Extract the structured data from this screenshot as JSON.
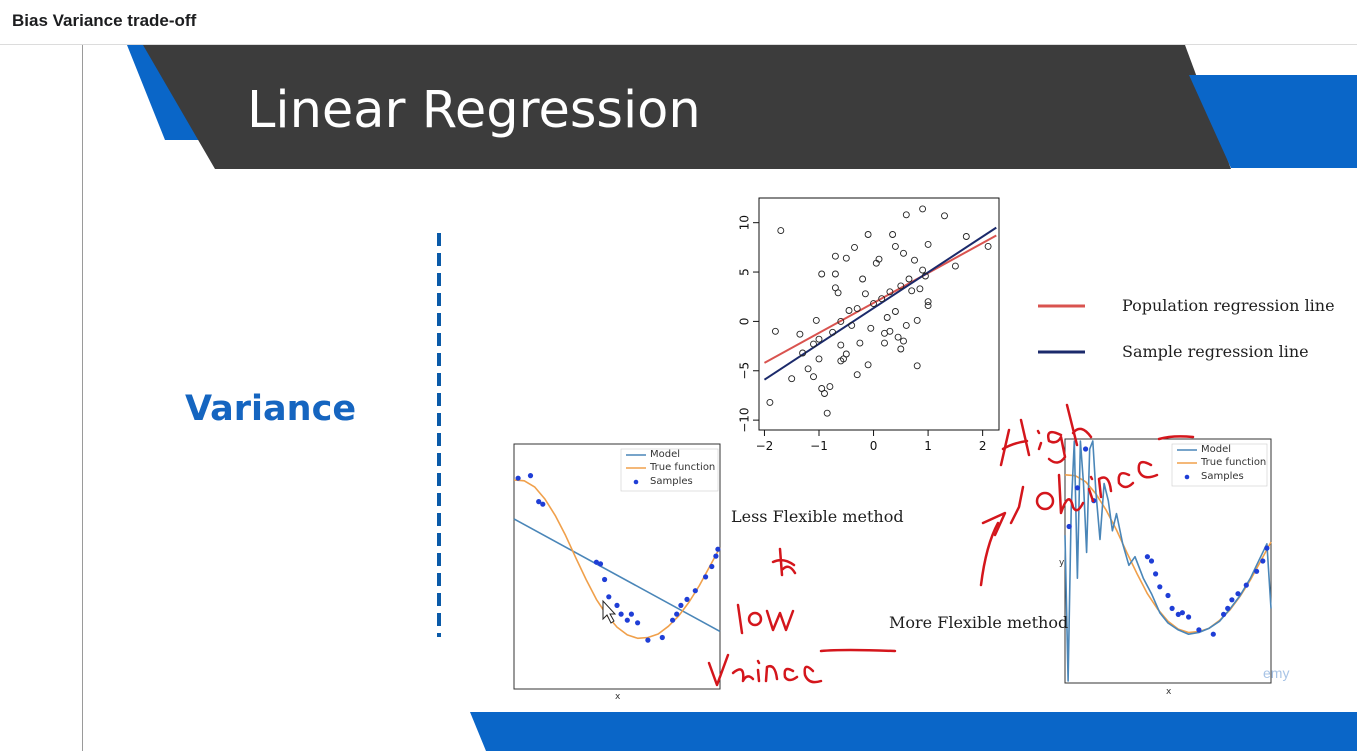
{
  "window": {
    "title": "Bias Variance trade-off"
  },
  "slide": {
    "title": "Linear Regression",
    "section_label": "Variance",
    "less_flexible_label": "Less Flexible method",
    "more_flexible_label": "More Flexible method",
    "watermark": "emy",
    "colors": {
      "header": "#3c3c3c",
      "accent": "#0a66c8",
      "variance_text": "#1565c0",
      "ink": "#d4161c"
    }
  },
  "handwriting": {
    "low_note": [
      "to",
      "low",
      "Variance"
    ],
    "high_note": [
      "High",
      "Variance"
    ]
  },
  "chart_data": [
    {
      "type": "scatter",
      "title": "",
      "xlabel": "",
      "ylabel": "",
      "xlim": [
        -2.1,
        2.3
      ],
      "ylim": [
        -11,
        12.5
      ],
      "xticks": [
        "−2",
        "−1",
        "0",
        "1",
        "2"
      ],
      "yticks": [
        "−10",
        "−5",
        "0",
        "5",
        "10"
      ],
      "legend": [
        "Population regression line",
        "Sample regression line"
      ],
      "lines": [
        {
          "name": "Population regression line",
          "color": "#d9534f",
          "x": [
            -2.0,
            2.25
          ],
          "y": [
            -4.2,
            8.7
          ]
        },
        {
          "name": "Sample regression line",
          "color": "#1b2a6b",
          "x": [
            -2.0,
            2.25
          ],
          "y": [
            -5.9,
            9.5
          ]
        }
      ],
      "points": [
        [
          -1.7,
          9.2
        ],
        [
          -1.8,
          -1.0
        ],
        [
          -1.9,
          -8.2
        ],
        [
          -1.5,
          -5.8
        ],
        [
          -1.3,
          -3.2
        ],
        [
          -1.2,
          -4.8
        ],
        [
          -1.1,
          -5.6
        ],
        [
          -1.05,
          0.1
        ],
        [
          -1.0,
          -1.8
        ],
        [
          -1.0,
          -3.8
        ],
        [
          -0.95,
          -6.8
        ],
        [
          -0.9,
          -7.3
        ],
        [
          -0.85,
          -9.3
        ],
        [
          -0.8,
          -6.6
        ],
        [
          -1.1,
          -2.3
        ],
        [
          -0.95,
          4.8
        ],
        [
          -0.7,
          6.6
        ],
        [
          -0.7,
          4.8
        ],
        [
          -0.7,
          3.4
        ],
        [
          -0.65,
          2.9
        ],
        [
          -0.6,
          0.0
        ],
        [
          -0.6,
          -2.4
        ],
        [
          -0.6,
          -4.0
        ],
        [
          -0.55,
          -3.8
        ],
        [
          -0.5,
          -3.3
        ],
        [
          -0.5,
          6.4
        ],
        [
          -0.45,
          1.1
        ],
        [
          -0.4,
          -0.4
        ],
        [
          -0.35,
          7.5
        ],
        [
          -0.3,
          1.3
        ],
        [
          -0.3,
          -5.4
        ],
        [
          -0.25,
          -2.2
        ],
        [
          -0.2,
          4.3
        ],
        [
          -0.15,
          2.8
        ],
        [
          -0.1,
          8.8
        ],
        [
          -0.1,
          -4.4
        ],
        [
          -0.05,
          -0.7
        ],
        [
          0.0,
          1.8
        ],
        [
          0.05,
          5.9
        ],
        [
          0.1,
          6.3
        ],
        [
          0.15,
          2.3
        ],
        [
          0.2,
          -1.2
        ],
        [
          0.2,
          -2.2
        ],
        [
          0.25,
          0.4
        ],
        [
          0.3,
          3.0
        ],
        [
          0.35,
          8.8
        ],
        [
          0.4,
          7.6
        ],
        [
          0.4,
          1.0
        ],
        [
          0.45,
          -1.6
        ],
        [
          0.5,
          -2.8
        ],
        [
          0.5,
          3.6
        ],
        [
          0.55,
          6.9
        ],
        [
          0.6,
          10.8
        ],
        [
          0.6,
          -0.4
        ],
        [
          0.65,
          4.3
        ],
        [
          0.7,
          3.1
        ],
        [
          0.75,
          6.2
        ],
        [
          0.8,
          0.1
        ],
        [
          0.8,
          -4.5
        ],
        [
          0.85,
          3.3
        ],
        [
          0.9,
          11.4
        ],
        [
          0.9,
          5.2
        ],
        [
          0.95,
          4.6
        ],
        [
          1.0,
          7.8
        ],
        [
          1.0,
          2.0
        ],
        [
          1.0,
          1.6
        ],
        [
          1.3,
          10.7
        ],
        [
          1.5,
          5.6
        ],
        [
          1.7,
          8.6
        ],
        [
          2.1,
          7.6
        ],
        [
          -0.75,
          -1.1
        ],
        [
          -1.35,
          -1.3
        ],
        [
          0.3,
          -1.0
        ],
        [
          0.55,
          -2.0
        ]
      ]
    },
    {
      "type": "scatter",
      "title": "",
      "xlabel": "x",
      "ylabel": "",
      "legend": [
        "Model",
        "True function",
        "Samples"
      ],
      "series": [
        {
          "name": "Model",
          "color": "#4a86b8",
          "kind": "line",
          "x": [
            0.0,
            1.0
          ],
          "y": [
            0.55,
            -0.75
          ]
        },
        {
          "name": "True function",
          "color": "#f0a04b",
          "kind": "line",
          "x": [
            0.0,
            0.05,
            0.1,
            0.15,
            0.2,
            0.25,
            0.3,
            0.35,
            0.4,
            0.45,
            0.5,
            0.55,
            0.6,
            0.65,
            0.7,
            0.75,
            0.8,
            0.85,
            0.9,
            0.95,
            1.0
          ],
          "y": [
            1.0,
            0.99,
            0.92,
            0.78,
            0.59,
            0.36,
            0.1,
            -0.15,
            -0.38,
            -0.56,
            -0.7,
            -0.79,
            -0.83,
            -0.82,
            -0.78,
            -0.69,
            -0.57,
            -0.41,
            -0.22,
            0.0,
            0.22
          ]
        },
        {
          "name": "Samples",
          "color": "#1f3ed6",
          "kind": "points",
          "x": [
            0.02,
            0.08,
            0.12,
            0.14,
            0.4,
            0.42,
            0.44,
            0.46,
            0.5,
            0.52,
            0.55,
            0.57,
            0.6,
            0.65,
            0.72,
            0.77,
            0.79,
            0.81,
            0.84,
            0.88,
            0.93,
            0.96,
            0.98,
            0.99
          ],
          "y": [
            1.02,
            1.05,
            0.75,
            0.72,
            0.05,
            0.03,
            -0.15,
            -0.35,
            -0.45,
            -0.55,
            -0.62,
            -0.55,
            -0.65,
            -0.85,
            -0.82,
            -0.62,
            -0.55,
            -0.45,
            -0.38,
            -0.28,
            -0.12,
            0.0,
            0.12,
            0.2
          ]
        }
      ]
    },
    {
      "type": "scatter",
      "title": "",
      "xlabel": "x",
      "ylabel": "y",
      "legend": [
        "Model",
        "True function",
        "Samples"
      ],
      "series": [
        {
          "name": "True function",
          "color": "#f0a04b",
          "kind": "line",
          "x": [
            0.0,
            0.05,
            0.1,
            0.15,
            0.2,
            0.25,
            0.3,
            0.35,
            0.4,
            0.45,
            0.5,
            0.55,
            0.6,
            0.65,
            0.7,
            0.75,
            0.8,
            0.85,
            0.9,
            0.95,
            1.0
          ],
          "y": [
            1.0,
            0.99,
            0.92,
            0.78,
            0.59,
            0.36,
            0.1,
            -0.15,
            -0.38,
            -0.56,
            -0.7,
            -0.79,
            -0.83,
            -0.82,
            -0.78,
            -0.69,
            -0.57,
            -0.41,
            -0.22,
            0.0,
            0.22
          ]
        },
        {
          "name": "Model",
          "color": "#4a86b8",
          "kind": "line",
          "x": [
            0.0,
            0.015,
            0.03,
            0.045,
            0.06,
            0.075,
            0.09,
            0.105,
            0.12,
            0.135,
            0.15,
            0.17,
            0.19,
            0.21,
            0.23,
            0.25,
            0.28,
            0.31,
            0.34,
            0.38,
            0.42,
            0.46,
            0.5,
            0.55,
            0.6,
            0.65,
            0.7,
            0.75,
            0.8,
            0.85,
            0.9,
            0.95,
            0.98,
            1.0
          ],
          "y": [
            0.3,
            -1.85,
            0.6,
            1.4,
            -0.2,
            1.6,
            0.9,
            0.1,
            1.3,
            1.5,
            0.8,
            0.25,
            0.9,
            0.7,
            0.35,
            0.55,
            0.2,
            -0.05,
            0.05,
            -0.2,
            -0.38,
            -0.6,
            -0.72,
            -0.8,
            -0.85,
            -0.83,
            -0.78,
            -0.7,
            -0.56,
            -0.4,
            -0.2,
            0.05,
            0.2,
            -0.55
          ]
        },
        {
          "name": "Samples",
          "color": "#1f3ed6",
          "kind": "points",
          "x": [
            0.02,
            0.06,
            0.1,
            0.14,
            0.4,
            0.42,
            0.44,
            0.46,
            0.5,
            0.52,
            0.55,
            0.57,
            0.6,
            0.65,
            0.72,
            0.77,
            0.79,
            0.81,
            0.84,
            0.88,
            0.93,
            0.96,
            0.98
          ],
          "y": [
            0.4,
            0.85,
            1.3,
            0.7,
            0.05,
            0.0,
            -0.15,
            -0.3,
            -0.4,
            -0.55,
            -0.62,
            -0.6,
            -0.65,
            -0.8,
            -0.85,
            -0.62,
            -0.55,
            -0.45,
            -0.38,
            -0.28,
            -0.12,
            0.0,
            0.15
          ]
        }
      ]
    }
  ]
}
